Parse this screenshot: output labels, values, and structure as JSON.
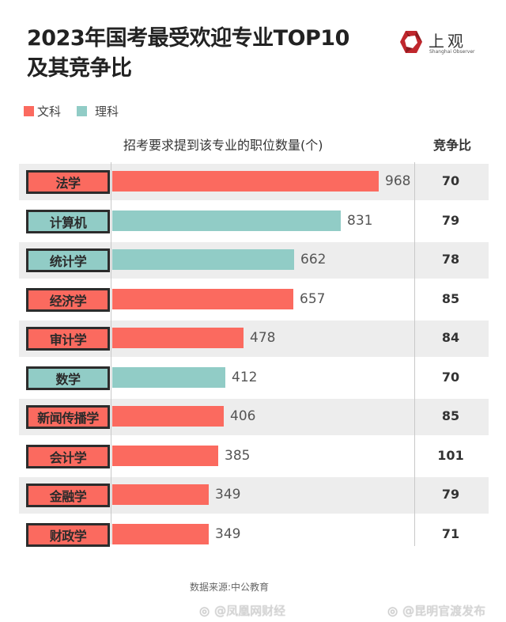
{
  "header": {
    "title_line1": "2023年国考最受欢迎专业TOP10",
    "title_line2": "及其竞争比",
    "logo_cn": "上观",
    "logo_en": "Shanghai Observer",
    "logo_color": "#c0272d"
  },
  "legend": [
    {
      "label": "文科",
      "color": "#fb6a5f"
    },
    {
      "label": "理科",
      "color": "#91ccc6"
    }
  ],
  "columns": {
    "bars_header": "招考要求提到该专业的职位数量(个)",
    "ratio_header": "竞争比"
  },
  "rows": [
    {
      "name": "法学",
      "category": "文科",
      "color": "#fb6a5f",
      "value": "968",
      "ratio": "70",
      "shade": true
    },
    {
      "name": "计算机",
      "category": "理科",
      "color": "#91ccc6",
      "value": "831",
      "ratio": "79",
      "shade": false
    },
    {
      "name": "统计学",
      "category": "理科",
      "color": "#91ccc6",
      "value": "662",
      "ratio": "78",
      "shade": true
    },
    {
      "name": "经济学",
      "category": "文科",
      "color": "#fb6a5f",
      "value": "657",
      "ratio": "85",
      "shade": false
    },
    {
      "name": "审计学",
      "category": "文科",
      "color": "#fb6a5f",
      "value": "478",
      "ratio": "84",
      "shade": true
    },
    {
      "name": "数学",
      "category": "理科",
      "color": "#91ccc6",
      "value": "412",
      "ratio": "70",
      "shade": false
    },
    {
      "name": "新闻传播学",
      "category": "文科",
      "color": "#fb6a5f",
      "value": "406",
      "ratio": "85",
      "shade": true
    },
    {
      "name": "会计学",
      "category": "文科",
      "color": "#fb6a5f",
      "value": "385",
      "ratio": "101",
      "shade": false
    },
    {
      "name": "金融学",
      "category": "文科",
      "color": "#fb6a5f",
      "value": "349",
      "ratio": "79",
      "shade": true
    },
    {
      "name": "财政学",
      "category": "文科",
      "color": "#fb6a5f",
      "value": "349",
      "ratio": "71",
      "shade": false
    }
  ],
  "footer": {
    "source": "数据来源:中公教育",
    "watermarks": [
      "@凤凰网财经",
      "@昆明官渡发布"
    ]
  },
  "chart_data": {
    "type": "bar",
    "orientation": "horizontal",
    "title": "2023年国考最受欢迎专业TOP10及其竞争比",
    "xlabel": "招考要求提到该专业的职位数量(个)",
    "ylabel": "",
    "categories": [
      "法学",
      "计算机",
      "统计学",
      "经济学",
      "审计学",
      "数学",
      "新闻传播学",
      "会计学",
      "金融学",
      "财政学"
    ],
    "series": [
      {
        "name": "职位数量(个)",
        "values": [
          968,
          831,
          662,
          657,
          478,
          412,
          406,
          385,
          349,
          349
        ]
      },
      {
        "name": "竞争比",
        "values": [
          70,
          79,
          78,
          85,
          84,
          70,
          85,
          101,
          79,
          71
        ]
      }
    ],
    "category_groups": {
      "文科": [
        "法学",
        "经济学",
        "审计学",
        "新闻传播学",
        "会计学",
        "金融学",
        "财政学"
      ],
      "理科": [
        "计算机",
        "统计学",
        "数学"
      ]
    },
    "legend": [
      "文科",
      "理科"
    ],
    "legend_position": "top-left",
    "grid": false,
    "xlim": [
      0,
      1000
    ],
    "source": "数据来源:中公教育"
  }
}
